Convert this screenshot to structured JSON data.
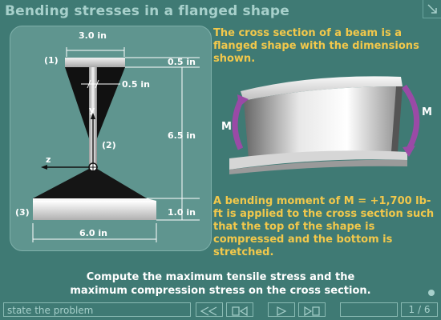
{
  "title": "Bending stresses in a flanged shape",
  "diagram": {
    "dim_top_width": "3.0 in",
    "dim_top_flange": "0.5 in",
    "dim_web": "0.5 in",
    "dim_height": "6.5 in",
    "dim_bottom_flange": "1.0 in",
    "dim_bottom_width": "6.0 in",
    "part1": "(1)",
    "part2": "(2)",
    "part3": "(3)",
    "axis_y": "y",
    "axis_z": "z"
  },
  "description1": "The cross section of a beam is a flanged shape with the dimensions shown.",
  "moment_label_left": "M",
  "moment_label_right": "M",
  "description2": "A bending moment of M = +1,700 lb-ft is applied to the cross section such that the top of the shape is compressed and the bottom is stretched.",
  "task": {
    "line1": "Compute the maximum tensile stress and the",
    "line2": "maximum compression stress on the cross section."
  },
  "nav": {
    "state": "state the problem",
    "page_current": "1",
    "page_sep": "/",
    "page_total": "6"
  }
}
